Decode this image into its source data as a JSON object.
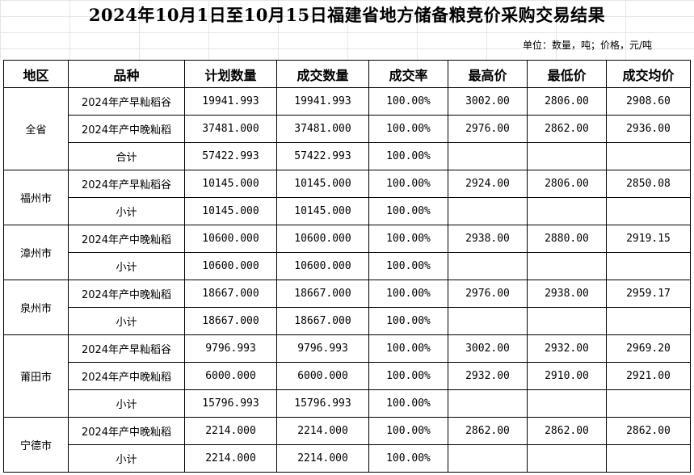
{
  "title": "2024年10月1日至10月15日福建省地方储备粮竞价采购交易结果",
  "unit": "单位：数量，吨；价格，元/吨",
  "headers": [
    "地区",
    "品种",
    "计划数量",
    "成交数量",
    "成交率",
    "最高价",
    "最低价",
    "成交均价"
  ],
  "groups": [
    {
      "region": "全省",
      "rows": [
        {
          "variety": "2024年产早籼稻谷",
          "planned": "19941.993",
          "traded": "19941.993",
          "rate": "100.00%",
          "max": "3002.00",
          "min": "2806.00",
          "avg": "2908.60"
        },
        {
          "variety": "2024年产中晚籼稻",
          "planned": "37481.000",
          "traded": "37481.000",
          "rate": "100.00%",
          "max": "2976.00",
          "min": "2862.00",
          "avg": "2936.00"
        },
        {
          "variety": "合计",
          "planned": "57422.993",
          "traded": "57422.993",
          "rate": "100.00%",
          "max": "",
          "min": "",
          "avg": ""
        }
      ]
    },
    {
      "region": "福州市",
      "rows": [
        {
          "variety": "2024年产早籼稻谷",
          "planned": "10145.000",
          "traded": "10145.000",
          "rate": "100.00%",
          "max": "2924.00",
          "min": "2806.00",
          "avg": "2850.08"
        },
        {
          "variety": "小计",
          "planned": "10145.000",
          "traded": "10145.000",
          "rate": "100.00%",
          "max": "",
          "min": "",
          "avg": ""
        }
      ]
    },
    {
      "region": "漳州市",
      "rows": [
        {
          "variety": "2024年产中晚籼稻",
          "planned": "10600.000",
          "traded": "10600.000",
          "rate": "100.00%",
          "max": "2938.00",
          "min": "2880.00",
          "avg": "2919.15"
        },
        {
          "variety": "小计",
          "planned": "10600.000",
          "traded": "10600.000",
          "rate": "100.00%",
          "max": "",
          "min": "",
          "avg": ""
        }
      ]
    },
    {
      "region": "泉州市",
      "rows": [
        {
          "variety": "2024年产中晚籼稻",
          "planned": "18667.000",
          "traded": "18667.000",
          "rate": "100.00%",
          "max": "2976.00",
          "min": "2938.00",
          "avg": "2959.17"
        },
        {
          "variety": "小计",
          "planned": "18667.000",
          "traded": "18667.000",
          "rate": "100.00%",
          "max": "",
          "min": "",
          "avg": ""
        }
      ]
    },
    {
      "region": "莆田市",
      "rows": [
        {
          "variety": "2024年产早籼稻谷",
          "planned": "9796.993",
          "traded": "9796.993",
          "rate": "100.00%",
          "max": "3002.00",
          "min": "2932.00",
          "avg": "2969.20"
        },
        {
          "variety": "2024年产中晚籼稻",
          "planned": "6000.000",
          "traded": "6000.000",
          "rate": "100.00%",
          "max": "2932.00",
          "min": "2910.00",
          "avg": "2921.00"
        },
        {
          "variety": "小计",
          "planned": "15796.993",
          "traded": "15796.993",
          "rate": "100.00%",
          "max": "",
          "min": "",
          "avg": ""
        }
      ]
    },
    {
      "region": "宁德市",
      "rows": [
        {
          "variety": "2024年产中晚籼稻",
          "planned": "2214.000",
          "traded": "2214.000",
          "rate": "100.00%",
          "max": "2862.00",
          "min": "2862.00",
          "avg": "2862.00"
        },
        {
          "variety": "小计",
          "planned": "2214.000",
          "traded": "2214.000",
          "rate": "100.00%",
          "max": "",
          "min": "",
          "avg": ""
        }
      ]
    }
  ]
}
